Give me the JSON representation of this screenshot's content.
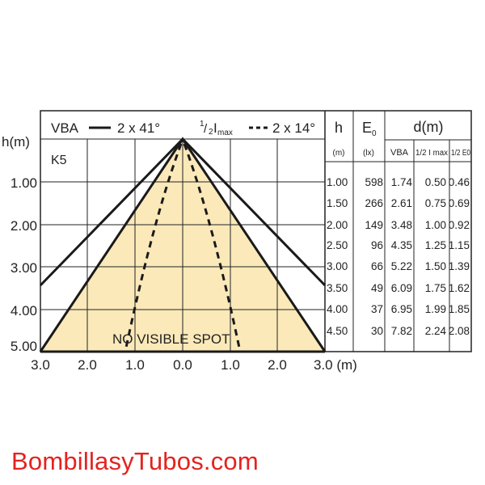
{
  "legend": {
    "vba_label": "VBA",
    "vba_angle": "2 x 41°",
    "half_imax_label_pre": "1",
    "half_imax_label_slash": "/",
    "half_imax_label_sub": "2",
    "half_imax_label_i": "I",
    "half_imax_label_max": "max",
    "half_imax_angle": "2 x 14°"
  },
  "axis": {
    "y_title": "h(m)",
    "y_ticks": [
      "1.00",
      "2.00",
      "3.00",
      "4.00",
      "5.00"
    ],
    "x_ticks": [
      "3.0",
      "2.0",
      "1.0",
      "0.0",
      "1.0",
      "2.0",
      "3.0 (m)"
    ]
  },
  "model": "K5",
  "note": "NO VISIBLE SPOT",
  "colors": {
    "cone_fill": "#fbe9b9",
    "line": "#1a1a1a",
    "brand": "#e3231f"
  },
  "table": {
    "h_header": "h",
    "e0_header": "E",
    "e0_sub": "0",
    "d_header": "d(m)",
    "h_unit": "(m)",
    "e0_unit": "(lx)",
    "vba_col": "VBA",
    "half_imax_col": "1/2 I max",
    "half_e0_col": "1/2 E0",
    "rows": [
      [
        "1.00",
        "598",
        "1.74",
        "0.50",
        "0.46"
      ],
      [
        "1.50",
        "266",
        "2.61",
        "0.75",
        "0.69"
      ],
      [
        "2.00",
        "149",
        "3.48",
        "1.00",
        "0.92"
      ],
      [
        "2.50",
        "96",
        "4.35",
        "1.25",
        "1.15"
      ],
      [
        "3.00",
        "66",
        "5.22",
        "1.50",
        "1.39"
      ],
      [
        "3.50",
        "49",
        "6.09",
        "1.75",
        "1.62"
      ],
      [
        "4.00",
        "37",
        "6.95",
        "1.99",
        "1.85"
      ],
      [
        "4.50",
        "30",
        "7.82",
        "2.24",
        "2.08"
      ]
    ]
  },
  "footer": {
    "site": "BombillasyTubos.com"
  }
}
